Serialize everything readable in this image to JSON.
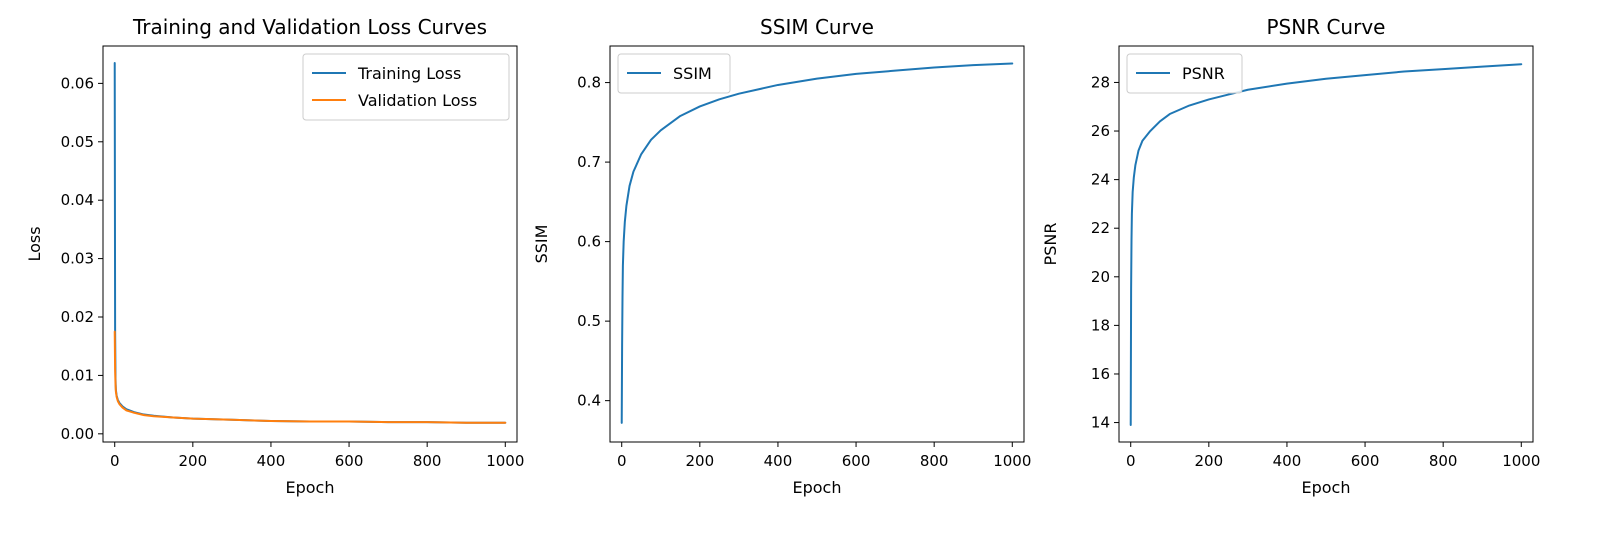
{
  "chart_data": [
    {
      "type": "line",
      "title": "Training and Validation Loss Curves",
      "xlabel": "Epoch",
      "ylabel": "Loss",
      "xlim": [
        -30,
        1030
      ],
      "ylim": [
        -0.0014,
        0.0664
      ],
      "xticks": [
        0,
        200,
        400,
        600,
        800,
        1000
      ],
      "yticks": [
        0.0,
        0.01,
        0.02,
        0.03,
        0.04,
        0.05,
        0.06
      ],
      "ytick_labels": [
        "0.00",
        "0.01",
        "0.02",
        "0.03",
        "0.04",
        "0.05",
        "0.06"
      ],
      "grid": false,
      "legend": "upper right",
      "series": [
        {
          "name": "Training Loss",
          "color": "#1f77b4",
          "x": [
            0,
            1,
            2,
            3,
            5,
            8,
            12,
            20,
            30,
            50,
            75,
            100,
            150,
            200,
            300,
            400,
            500,
            600,
            700,
            800,
            900,
            1000
          ],
          "y": [
            0.0635,
            0.018,
            0.0095,
            0.0075,
            0.0065,
            0.0058,
            0.0053,
            0.0047,
            0.0042,
            0.0037,
            0.0033,
            0.0031,
            0.0028,
            0.0026,
            0.0024,
            0.0022,
            0.0021,
            0.0021,
            0.002,
            0.002,
            0.0019,
            0.0019
          ]
        },
        {
          "name": "Validation Loss",
          "color": "#ff7f0e",
          "x": [
            0,
            1,
            2,
            3,
            5,
            8,
            12,
            20,
            30,
            50,
            75,
            100,
            150,
            200,
            300,
            400,
            500,
            600,
            700,
            800,
            900,
            1000
          ],
          "y": [
            0.0175,
            0.011,
            0.0085,
            0.0072,
            0.0063,
            0.0056,
            0.0051,
            0.0045,
            0.004,
            0.0036,
            0.0032,
            0.003,
            0.0028,
            0.0026,
            0.0024,
            0.0022,
            0.0021,
            0.0021,
            0.002,
            0.002,
            0.0019,
            0.0019
          ]
        }
      ]
    },
    {
      "type": "line",
      "title": "SSIM Curve",
      "xlabel": "Epoch",
      "ylabel": "SSIM",
      "xlim": [
        -30,
        1030
      ],
      "ylim": [
        0.348,
        0.846
      ],
      "xticks": [
        0,
        200,
        400,
        600,
        800,
        1000
      ],
      "yticks": [
        0.4,
        0.5,
        0.6,
        0.7,
        0.8
      ],
      "ytick_labels": [
        "0.4",
        "0.5",
        "0.6",
        "0.7",
        "0.8"
      ],
      "grid": false,
      "legend": "upper left",
      "series": [
        {
          "name": "SSIM",
          "color": "#1f77b4",
          "x": [
            0,
            1,
            2,
            3,
            5,
            8,
            12,
            20,
            30,
            50,
            75,
            100,
            150,
            200,
            250,
            300,
            400,
            500,
            600,
            700,
            800,
            900,
            1000
          ],
          "y": [
            0.372,
            0.47,
            0.53,
            0.57,
            0.6,
            0.625,
            0.645,
            0.67,
            0.688,
            0.71,
            0.728,
            0.74,
            0.758,
            0.77,
            0.779,
            0.786,
            0.797,
            0.805,
            0.811,
            0.815,
            0.819,
            0.822,
            0.824
          ]
        }
      ]
    },
    {
      "type": "line",
      "title": "PSNR Curve",
      "xlabel": "Epoch",
      "ylabel": "PSNR",
      "xlim": [
        -30,
        1030
      ],
      "ylim": [
        13.2,
        29.5
      ],
      "xticks": [
        0,
        200,
        400,
        600,
        800,
        1000
      ],
      "yticks": [
        14,
        16,
        18,
        20,
        22,
        24,
        26,
        28
      ],
      "ytick_labels": [
        "14",
        "16",
        "18",
        "20",
        "22",
        "24",
        "26",
        "28"
      ],
      "grid": false,
      "legend": "upper left",
      "series": [
        {
          "name": "PSNR",
          "color": "#1f77b4",
          "x": [
            0,
            1,
            2,
            3,
            5,
            8,
            12,
            20,
            30,
            50,
            75,
            100,
            150,
            200,
            250,
            300,
            400,
            500,
            600,
            700,
            800,
            900,
            1000
          ],
          "y": [
            13.9,
            19.5,
            21.5,
            22.6,
            23.5,
            24.1,
            24.6,
            25.2,
            25.6,
            26.0,
            26.4,
            26.7,
            27.05,
            27.3,
            27.5,
            27.7,
            27.95,
            28.15,
            28.3,
            28.45,
            28.55,
            28.65,
            28.75
          ]
        }
      ]
    }
  ]
}
